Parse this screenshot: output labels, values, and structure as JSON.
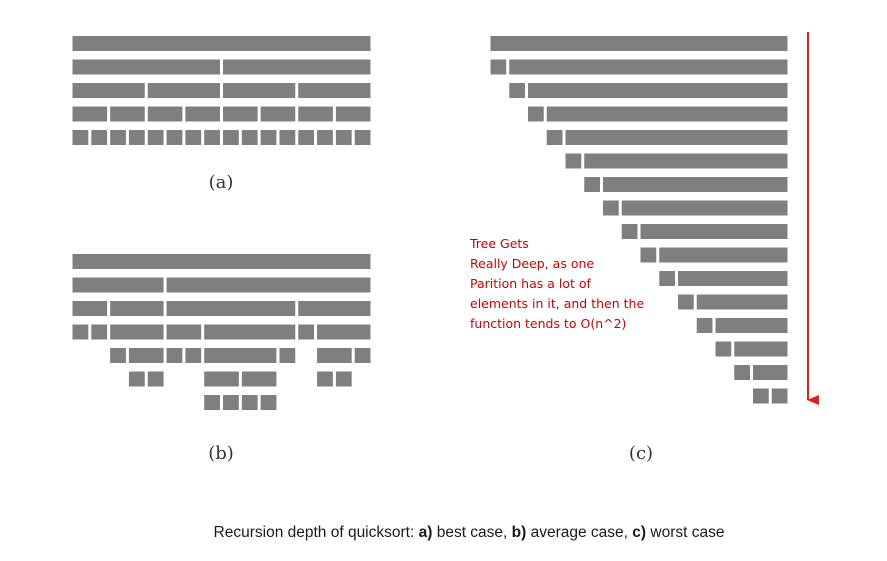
{
  "panels": [
    {
      "id": "a",
      "label": "(a)",
      "rows": [
        [
          [
            0,
            1
          ]
        ],
        [
          [
            0,
            0.5
          ],
          [
            0.5,
            1
          ]
        ],
        [
          [
            0,
            0.25
          ],
          [
            0.25,
            0.5
          ],
          [
            0.5,
            0.75
          ],
          [
            0.75,
            1
          ]
        ],
        [
          [
            0,
            0.125
          ],
          [
            0.125,
            0.25
          ],
          [
            0.25,
            0.375
          ],
          [
            0.375,
            0.5
          ],
          [
            0.5,
            0.625
          ],
          [
            0.625,
            0.75
          ],
          [
            0.75,
            0.875
          ],
          [
            0.875,
            1
          ]
        ],
        [
          [
            0,
            0.0625
          ],
          [
            0.0625,
            0.125
          ],
          [
            0.125,
            0.1875
          ],
          [
            0.1875,
            0.25
          ],
          [
            0.25,
            0.3125
          ],
          [
            0.3125,
            0.375
          ],
          [
            0.375,
            0.4375
          ],
          [
            0.4375,
            0.5
          ],
          [
            0.5,
            0.5625
          ],
          [
            0.5625,
            0.625
          ],
          [
            0.625,
            0.6875
          ],
          [
            0.6875,
            0.75
          ],
          [
            0.75,
            0.8125
          ],
          [
            0.8125,
            0.875
          ],
          [
            0.875,
            0.9375
          ],
          [
            0.9375,
            1
          ]
        ]
      ]
    },
    {
      "id": "b",
      "label": "(b)",
      "rows": [
        [
          [
            0,
            1
          ]
        ],
        [
          [
            0,
            0.3125
          ],
          [
            0.3125,
            1
          ]
        ],
        [
          [
            0,
            0.125
          ],
          [
            0.125,
            0.3125
          ],
          [
            0.3125,
            0.75
          ],
          [
            0.75,
            1
          ]
        ],
        [
          [
            0,
            0.0625
          ],
          [
            0.0625,
            0.125
          ],
          [
            0.125,
            0.3125
          ],
          [
            0.3125,
            0.4375
          ],
          [
            0.4375,
            0.75
          ],
          [
            0.75,
            0.8125
          ],
          [
            0.8125,
            1
          ]
        ],
        [
          [
            0.125,
            0.1875
          ],
          [
            0.1875,
            0.3125
          ],
          [
            0.3125,
            0.375
          ],
          [
            0.375,
            0.4375
          ],
          [
            0.4375,
            0.6875
          ],
          [
            0.6875,
            0.75
          ],
          [
            0.8125,
            0.9375
          ],
          [
            0.9375,
            1
          ]
        ],
        [
          [
            0.1875,
            0.25
          ],
          [
            0.25,
            0.3125
          ],
          [
            0.4375,
            0.5625
          ],
          [
            0.5625,
            0.6875
          ],
          [
            0.8125,
            0.875
          ],
          [
            0.875,
            0.9375
          ]
        ],
        [
          [
            0.4375,
            0.5
          ],
          [
            0.5,
            0.5625
          ],
          [
            0.5625,
            0.625
          ],
          [
            0.625,
            0.6875
          ]
        ]
      ]
    },
    {
      "id": "c",
      "label": "(c)",
      "depth": 16
    }
  ],
  "note_lines": [
    "Tree Gets",
    "Really Deep, as one",
    "Parition has a lot of",
    "elements in it, and then the",
    "function tends to O(n^2)"
  ],
  "caption": {
    "prefix": "Recursion depth of quicksort: ",
    "a_key": "a)",
    "a_text": " best case, ",
    "b_key": "b)",
    "b_text": " average case, ",
    "c_key": "c)",
    "c_text": " worst case"
  },
  "colors": {
    "block": "#7f7f7f",
    "arrow": "#e0201a",
    "note": "#cc0000"
  }
}
